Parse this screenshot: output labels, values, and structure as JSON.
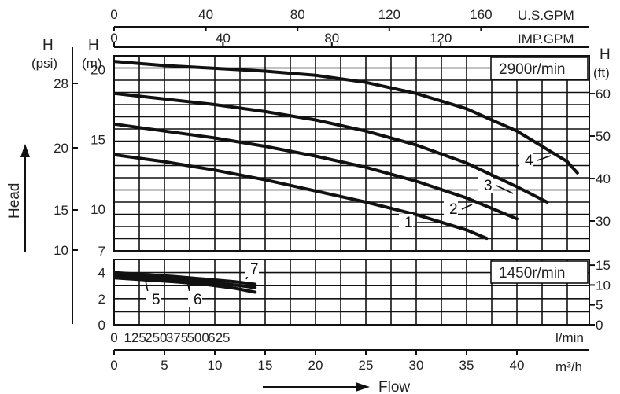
{
  "chart_data": {
    "type": "line",
    "top_axes": [
      {
        "unit": "U.S.GPM",
        "ticks": [
          "0",
          "40",
          "80",
          "120",
          "160"
        ],
        "values": [
          0,
          40,
          80,
          120,
          160
        ]
      },
      {
        "unit": "IMP.GPM",
        "ticks": [
          "0",
          "40",
          "80",
          "120"
        ],
        "values": [
          0,
          40,
          80,
          120
        ]
      }
    ],
    "bottom_axes": [
      {
        "unit": "l/min",
        "ticks": [
          "0",
          "125",
          "250",
          "375",
          "500",
          "625"
        ],
        "values": [
          0,
          125,
          250,
          375,
          500,
          625
        ]
      },
      {
        "unit": "m³/h",
        "ticks": [
          "0",
          "5",
          "10",
          "15",
          "20",
          "25",
          "30",
          "35",
          "40"
        ],
        "values": [
          0,
          5,
          10,
          15,
          20,
          25,
          30,
          35,
          40
        ]
      }
    ],
    "flow_label": "Flow",
    "head_label": "Head",
    "left_axes": {
      "psi": {
        "label_h": "H",
        "label_unit": "(psi)",
        "ticks": [
          "28",
          "20",
          "15",
          "10"
        ],
        "values": [
          28,
          20,
          15,
          10
        ]
      },
      "m": {
        "label_h": "H",
        "label_unit": "(m)",
        "ticks": [
          "20",
          "15",
          "10",
          "7"
        ],
        "values": [
          20,
          15,
          10,
          7
        ]
      },
      "m_low": {
        "ticks": [
          "4",
          "2",
          "0"
        ],
        "values": [
          4,
          2,
          0
        ]
      }
    },
    "right_axes": {
      "ft": {
        "label_h": "H",
        "label_unit": "(ft)",
        "ticks": [
          "60",
          "50",
          "40",
          "30"
        ],
        "values": [
          60,
          50,
          40,
          30
        ]
      },
      "ft_low": {
        "ticks": [
          "15",
          "10",
          "5",
          "0"
        ],
        "values": [
          15,
          10,
          5,
          0
        ]
      }
    },
    "panels": [
      {
        "speed": "2900r/min",
        "x_unit": "m³/h",
        "xlim": [
          0,
          48
        ],
        "y_unit": "m",
        "ylim": [
          7,
          21
        ],
        "series": [
          {
            "name": "1",
            "x": [
              0,
              5,
              10,
              15,
              20,
              25,
              30,
              35,
              37
            ],
            "y": [
              13.9,
              13.4,
              12.8,
              12.1,
              11.3,
              10.5,
              9.6,
              8.5,
              7.9
            ]
          },
          {
            "name": "2",
            "x": [
              0,
              5,
              10,
              15,
              20,
              25,
              30,
              35,
              40
            ],
            "y": [
              16.1,
              15.6,
              15.1,
              14.5,
              13.8,
              13.0,
              12.0,
              10.8,
              9.3
            ]
          },
          {
            "name": "3",
            "x": [
              0,
              5,
              10,
              15,
              20,
              25,
              30,
              35,
              40,
              43
            ],
            "y": [
              18.3,
              17.9,
              17.5,
              17.0,
              16.4,
              15.6,
              14.6,
              13.3,
              11.6,
              10.5
            ]
          },
          {
            "name": "4",
            "x": [
              0,
              5,
              10,
              15,
              20,
              25,
              30,
              35,
              40,
              45,
              46
            ],
            "y": [
              20.6,
              20.3,
              20.1,
              19.9,
              19.6,
              19.1,
              18.3,
              17.2,
              15.6,
              13.4,
              12.6
            ]
          }
        ]
      },
      {
        "speed": "1450r/min",
        "x_unit": "m³/h",
        "xlim": [
          0,
          48
        ],
        "y_unit": "m",
        "ylim": [
          0,
          5
        ],
        "series": [
          {
            "name": "5",
            "x": [
              0,
              3,
              6,
              9,
              12,
              14
            ],
            "y": [
              3.6,
              3.45,
              3.3,
              3.1,
              2.8,
              2.5
            ]
          },
          {
            "name": "6",
            "x": [
              0,
              3,
              6,
              9,
              12,
              14
            ],
            "y": [
              3.8,
              3.65,
              3.5,
              3.3,
              3.05,
              2.85
            ]
          },
          {
            "name": "7",
            "x": [
              0,
              3,
              6,
              9,
              12,
              14
            ],
            "y": [
              4.0,
              3.85,
              3.7,
              3.5,
              3.3,
              3.1
            ]
          }
        ]
      }
    ]
  }
}
